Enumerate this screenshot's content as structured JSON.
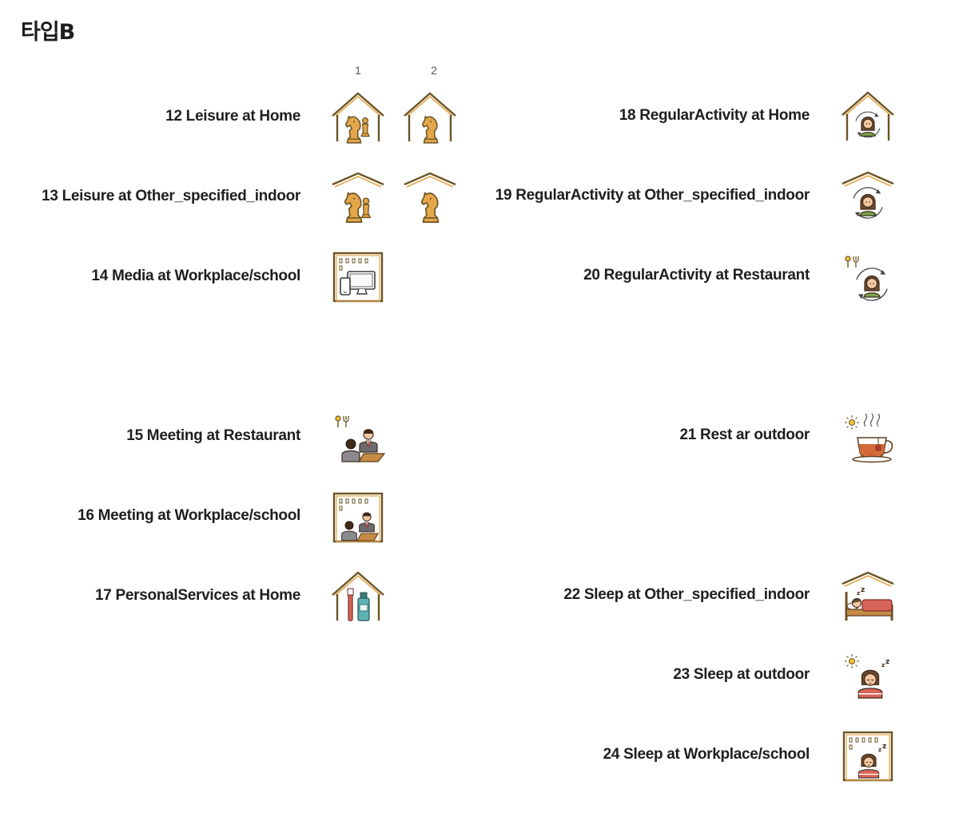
{
  "title": "타입B",
  "columns": [
    "1",
    "2"
  ],
  "left_items": [
    {
      "label": "12 Leisure at Home",
      "icons": [
        "chess-pieces-home-icon",
        "chess-knight-home-icon"
      ]
    },
    {
      "label": "13 Leisure at Other_specified_indoor",
      "icons": [
        "chess-pieces-indoor-icon",
        "chess-knight-indoor-icon"
      ]
    },
    {
      "label": "14 Media at Workplace/school",
      "icons": [
        "devices-workplace-icon"
      ]
    },
    {
      "label": "15 Meeting at Restaurant",
      "icons": [
        "meeting-restaurant-icon"
      ]
    },
    {
      "label": "16 Meeting at Workplace/school",
      "icons": [
        "meeting-workplace-icon"
      ]
    },
    {
      "label": "17 PersonalServices at Home",
      "icons": [
        "toothbrush-home-icon"
      ]
    }
  ],
  "right_items": [
    {
      "label": "18 RegularActivity at Home",
      "icons": [
        "routine-home-icon"
      ]
    },
    {
      "label": "19 RegularActivity at Other_specified_indoor",
      "icons": [
        "routine-indoor-icon"
      ]
    },
    {
      "label": "20 RegularActivity at Restaurant",
      "icons": [
        "routine-restaurant-icon"
      ]
    },
    {
      "label": "21 Rest ar outdoor",
      "icons": [
        "tea-cup-outdoor-icon"
      ]
    },
    {
      "label": "22 Sleep at Other_specified_indoor",
      "icons": [
        "bed-indoor-icon"
      ]
    },
    {
      "label": "23 Sleep at outdoor",
      "icons": [
        "sleep-outdoor-icon"
      ]
    },
    {
      "label": "24 Sleep at Workplace/school",
      "icons": [
        "sleep-workplace-icon"
      ]
    }
  ],
  "colors": {
    "outline": "#6b5424",
    "gold": "#e3a64a",
    "wood": "#c58b45",
    "green": "#7aa24a",
    "red": "#d9645a",
    "teal": "#5fb3b3",
    "tea": "#d46a3a"
  }
}
